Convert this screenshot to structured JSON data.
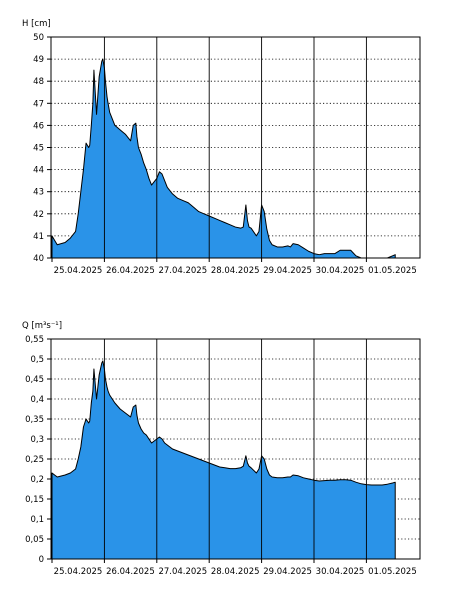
{
  "colors": {
    "fill": "#2a93e8",
    "line": "#000000",
    "grid": "#000000",
    "background": "#ffffff"
  },
  "chart_data": [
    {
      "type": "area",
      "ylabel": "H [cm]",
      "ylim": [
        40,
        50
      ],
      "yticks": [
        40,
        41,
        42,
        43,
        44,
        45,
        46,
        47,
        48,
        49,
        50
      ],
      "ytick_labels": [
        "40",
        "41",
        "42",
        "43",
        "44",
        "45",
        "46",
        "47",
        "48",
        "49",
        "50"
      ],
      "xlim": [
        0,
        6.92
      ],
      "day_labels": [
        "25.04.2025",
        "26.04.2025",
        "27.04.2025",
        "28.04.2025",
        "29.04.2025",
        "30.04.2025",
        "01.05.2025"
      ],
      "grid": "dotted horizontal, solid vertical day lines",
      "series": [
        {
          "x": [
            0.0,
            0.05,
            0.1,
            0.25,
            0.35,
            0.45,
            0.5,
            0.55,
            0.6,
            0.65,
            0.7,
            0.72,
            0.75,
            0.78,
            0.8,
            0.85,
            0.9,
            0.95,
            0.97,
            1.0,
            1.02,
            1.05,
            1.07,
            1.1,
            1.15,
            1.2,
            1.3,
            1.4,
            1.5,
            1.55,
            1.6,
            1.62,
            1.65,
            1.7,
            1.75,
            1.8,
            1.85,
            1.9,
            2.0,
            2.05,
            2.1,
            2.15,
            2.2,
            2.3,
            2.4,
            2.5,
            2.6,
            2.7,
            2.8,
            2.9,
            3.0,
            3.1,
            3.2,
            3.3,
            3.4,
            3.5,
            3.6,
            3.65,
            3.7,
            3.73,
            3.76,
            3.8,
            3.9,
            3.95,
            4.0,
            4.05,
            4.1,
            4.15,
            4.2,
            4.3,
            4.4,
            4.5,
            4.55,
            4.6,
            4.7,
            4.8,
            4.9,
            5.0,
            5.1,
            5.2,
            5.3,
            5.4,
            5.5,
            5.6,
            5.7,
            5.8,
            5.9,
            6.0,
            6.1,
            6.2,
            6.3,
            6.4,
            6.5,
            6.55
          ],
          "values": [
            41.0,
            40.8,
            40.6,
            40.7,
            40.9,
            41.2,
            42.0,
            43.0,
            44.0,
            45.2,
            45.0,
            45.1,
            46.0,
            47.0,
            48.5,
            46.5,
            48.2,
            48.9,
            49.0,
            48.6,
            48.0,
            47.3,
            47.0,
            46.6,
            46.3,
            46.0,
            45.8,
            45.6,
            45.3,
            46.0,
            46.1,
            45.5,
            45.0,
            44.7,
            44.3,
            44.0,
            43.6,
            43.3,
            43.6,
            43.9,
            43.8,
            43.5,
            43.2,
            42.9,
            42.7,
            42.6,
            42.5,
            42.3,
            42.1,
            42.0,
            41.9,
            41.8,
            41.7,
            41.6,
            41.5,
            41.4,
            41.35,
            41.4,
            42.4,
            41.7,
            41.4,
            41.35,
            41.0,
            41.2,
            42.4,
            42.1,
            41.3,
            40.8,
            40.6,
            40.5,
            40.5,
            40.55,
            40.5,
            40.65,
            40.6,
            40.45,
            40.3,
            40.2,
            40.15,
            40.2,
            40.2,
            40.2,
            40.35,
            40.35,
            40.35,
            40.1,
            39.9,
            39.85,
            39.8,
            39.8,
            39.8,
            39.9,
            40.1,
            40.15
          ]
        }
      ]
    },
    {
      "type": "area",
      "ylabel": "Q [m³s⁻¹]",
      "ylim": [
        0,
        0.55
      ],
      "yticks": [
        0,
        0.05,
        0.1,
        0.15,
        0.2,
        0.25,
        0.3,
        0.35,
        0.4,
        0.45,
        0.5,
        0.55
      ],
      "ytick_labels": [
        "0",
        "0,05",
        "0,1",
        "0,15",
        "0,2",
        "0,25",
        "0,3",
        "0,35",
        "0,4",
        "0,45",
        "0,5",
        "0,55"
      ],
      "xlim": [
        0,
        6.92
      ],
      "day_labels": [
        "25.04.2025",
        "26.04.2025",
        "27.04.2025",
        "28.04.2025",
        "29.04.2025",
        "30.04.2025",
        "01.05.2025"
      ],
      "grid": "dotted horizontal, solid vertical day lines",
      "series": [
        {
          "x": [
            0.0,
            0.05,
            0.1,
            0.25,
            0.35,
            0.45,
            0.5,
            0.55,
            0.6,
            0.65,
            0.7,
            0.72,
            0.75,
            0.78,
            0.8,
            0.85,
            0.9,
            0.95,
            0.97,
            1.0,
            1.02,
            1.05,
            1.07,
            1.1,
            1.15,
            1.2,
            1.3,
            1.4,
            1.5,
            1.55,
            1.6,
            1.62,
            1.65,
            1.7,
            1.75,
            1.8,
            1.85,
            1.9,
            2.0,
            2.05,
            2.1,
            2.15,
            2.2,
            2.3,
            2.4,
            2.5,
            2.6,
            2.7,
            2.8,
            2.9,
            3.0,
            3.1,
            3.2,
            3.3,
            3.4,
            3.5,
            3.6,
            3.65,
            3.7,
            3.73,
            3.76,
            3.8,
            3.9,
            3.95,
            4.0,
            4.05,
            4.1,
            4.15,
            4.2,
            4.3,
            4.4,
            4.5,
            4.55,
            4.6,
            4.7,
            4.8,
            4.9,
            5.0,
            5.1,
            5.2,
            5.3,
            5.4,
            5.5,
            5.6,
            5.7,
            5.8,
            5.9,
            6.0,
            6.1,
            6.2,
            6.3,
            6.4,
            6.5,
            6.55
          ],
          "values": [
            0.215,
            0.21,
            0.205,
            0.21,
            0.215,
            0.225,
            0.25,
            0.28,
            0.33,
            0.35,
            0.34,
            0.345,
            0.39,
            0.42,
            0.475,
            0.4,
            0.46,
            0.49,
            0.495,
            0.475,
            0.45,
            0.43,
            0.42,
            0.41,
            0.4,
            0.39,
            0.375,
            0.365,
            0.355,
            0.38,
            0.385,
            0.36,
            0.34,
            0.325,
            0.315,
            0.31,
            0.3,
            0.29,
            0.3,
            0.305,
            0.3,
            0.29,
            0.285,
            0.275,
            0.27,
            0.265,
            0.26,
            0.255,
            0.25,
            0.245,
            0.24,
            0.235,
            0.23,
            0.228,
            0.226,
            0.226,
            0.228,
            0.232,
            0.258,
            0.24,
            0.232,
            0.228,
            0.215,
            0.225,
            0.258,
            0.25,
            0.225,
            0.21,
            0.205,
            0.203,
            0.203,
            0.205,
            0.205,
            0.21,
            0.208,
            0.203,
            0.2,
            0.197,
            0.195,
            0.196,
            0.197,
            0.197,
            0.198,
            0.198,
            0.197,
            0.192,
            0.188,
            0.186,
            0.185,
            0.185,
            0.185,
            0.187,
            0.19,
            0.192
          ]
        }
      ]
    }
  ]
}
